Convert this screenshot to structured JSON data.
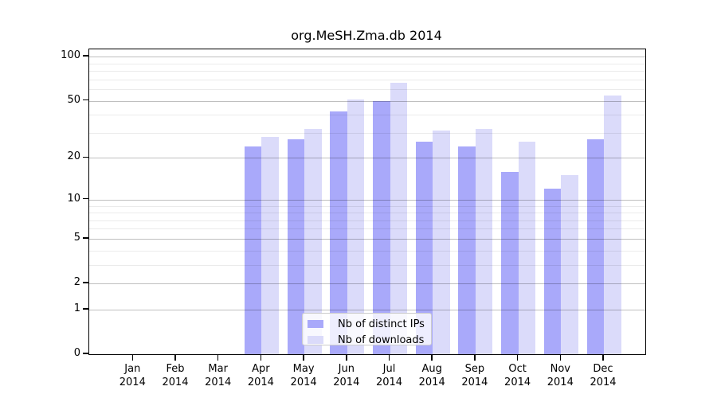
{
  "chart_data": {
    "type": "bar",
    "title": "org.MeSH.Zma.db 2014",
    "categories": [
      "Jan",
      "Feb",
      "Mar",
      "Apr",
      "May",
      "Jun",
      "Jul",
      "Aug",
      "Sep",
      "Oct",
      "Nov",
      "Dec"
    ],
    "category_year": "2014",
    "series": [
      {
        "name": "Nb of distinct IPs",
        "color": "#a9a9fa",
        "values": [
          0,
          0,
          0,
          24,
          27,
          42,
          50,
          26,
          24,
          16,
          12,
          27
        ]
      },
      {
        "name": "Nb of downloads",
        "color": "#dbdbfa",
        "values": [
          0,
          0,
          0,
          28,
          32,
          51,
          66,
          31,
          32,
          26,
          15,
          54
        ]
      }
    ],
    "xlabel": "",
    "ylabel": "",
    "yscale": "log1p",
    "yticks": [
      0,
      1,
      2,
      5,
      10,
      20,
      50,
      100
    ],
    "minor_yticks": [
      3,
      4,
      6,
      7,
      8,
      9,
      30,
      40,
      60,
      70,
      80,
      90
    ],
    "ylim": [
      0,
      112
    ],
    "grid": true,
    "legend_position": "inside-bottom-center"
  }
}
